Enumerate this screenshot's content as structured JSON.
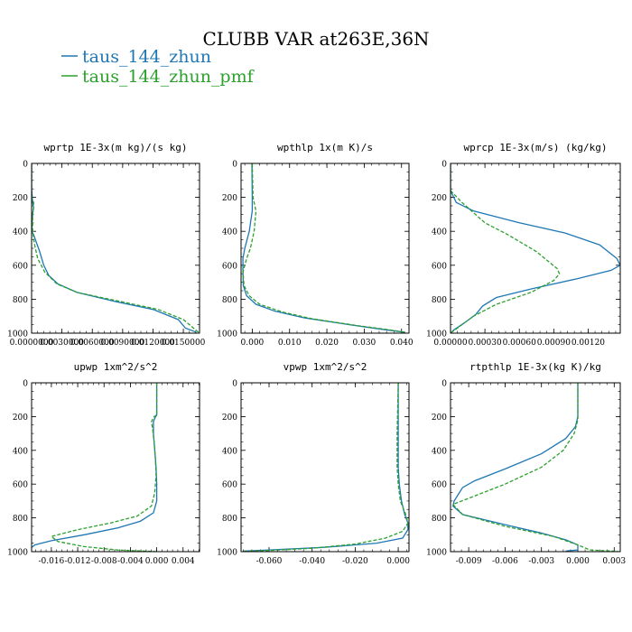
{
  "figure_title": "CLUBB VAR at263E,36N",
  "legend": [
    {
      "label": "taus_144_zhun",
      "color": "#1f77b4",
      "dash": "solid"
    },
    {
      "label": "taus_144_zhun_pmf",
      "color": "#2ca02c",
      "dash": "dashed"
    }
  ],
  "chart_data": [
    {
      "type": "line",
      "title": "wprtp  1E-3x(m kg)/(s kg)",
      "xlabel": "",
      "ylabel": "",
      "xlim": [
        0,
        0.0166
      ],
      "ylim": [
        1000,
        0
      ],
      "y_reversed": true,
      "xticks": [
        0,
        0.003,
        0.006,
        0.009,
        0.012,
        0.015
      ],
      "xtick_labels": [
        "0.0000000",
        "0.0030000",
        "0.0060000",
        "0.0090000",
        "0.0120000",
        "0.0150000"
      ],
      "yticks": [
        0,
        200,
        400,
        600,
        800,
        1000
      ],
      "ytick_labels": [
        "0",
        "200",
        "400",
        "600",
        "800",
        "1000"
      ],
      "series": [
        {
          "name": "taus_144_zhun",
          "color": "#1f77b4",
          "dash": "solid",
          "points": [
            [
              0,
              0
            ],
            [
              0,
              150
            ],
            [
              0.0001,
              230
            ],
            [
              0.0002,
              260
            ],
            [
              0.0001,
              300
            ],
            [
              0,
              400
            ],
            [
              0.0002,
              420
            ],
            [
              0.0005,
              470
            ],
            [
              0.0008,
              520
            ],
            [
              0.0012,
              600
            ],
            [
              0.0017,
              660
            ],
            [
              0.0026,
              710
            ],
            [
              0.0045,
              760
            ],
            [
              0.008,
              810
            ],
            [
              0.012,
              860
            ],
            [
              0.0145,
              920
            ],
            [
              0.0152,
              970
            ],
            [
              0.0163,
              995
            ]
          ]
        },
        {
          "name": "taus_144_zhun_pmf",
          "color": "#2ca02c",
          "dash": "dashed",
          "points": [
            [
              0,
              0
            ],
            [
              0,
              200
            ],
            [
              0.0002,
              230
            ],
            [
              0.0002,
              260
            ],
            [
              0.0001,
              300
            ],
            [
              0.0001,
              400
            ],
            [
              0.0003,
              480
            ],
            [
              0.0006,
              560
            ],
            [
              0.0013,
              640
            ],
            [
              0.0025,
              710
            ],
            [
              0.0045,
              760
            ],
            [
              0.0085,
              810
            ],
            [
              0.0125,
              860
            ],
            [
              0.015,
              920
            ],
            [
              0.0162,
              980
            ],
            [
              0.0165,
              995
            ]
          ]
        }
      ]
    },
    {
      "type": "line",
      "title": "wpthlp  1x(m K)/s",
      "xlabel": "",
      "ylabel": "",
      "xlim": [
        -0.003,
        0.042
      ],
      "ylim": [
        1000,
        0
      ],
      "y_reversed": true,
      "xticks": [
        0,
        0.01,
        0.02,
        0.03,
        0.04
      ],
      "xtick_labels": [
        "0.000",
        "0.010",
        "0.020",
        "0.030",
        "0.040"
      ],
      "yticks": [
        0,
        200,
        400,
        600,
        800,
        1000
      ],
      "ytick_labels": [
        "0",
        "200",
        "400",
        "600",
        "800",
        "1000"
      ],
      "series": [
        {
          "name": "taus_144_zhun",
          "color": "#1f77b4",
          "dash": "solid",
          "points": [
            [
              -0.0001,
              0
            ],
            [
              0,
              200
            ],
            [
              0,
              280
            ],
            [
              -0.0008,
              400
            ],
            [
              -0.002,
              500
            ],
            [
              -0.0025,
              560
            ],
            [
              -0.0025,
              640
            ],
            [
              -0.0024,
              720
            ],
            [
              -0.0015,
              780
            ],
            [
              0.001,
              830
            ],
            [
              0.006,
              870
            ],
            [
              0.014,
              910
            ],
            [
              0.026,
              950
            ],
            [
              0.034,
              975
            ],
            [
              0.041,
              995
            ]
          ]
        },
        {
          "name": "taus_144_zhun_pmf",
          "color": "#2ca02c",
          "dash": "dashed",
          "points": [
            [
              0,
              0
            ],
            [
              0.0002,
              200
            ],
            [
              0.001,
              280
            ],
            [
              0.0005,
              400
            ],
            [
              -0.0005,
              500
            ],
            [
              -0.0015,
              560
            ],
            [
              -0.0025,
              640
            ],
            [
              -0.0022,
              720
            ],
            [
              -0.0008,
              780
            ],
            [
              0.002,
              830
            ],
            [
              0.008,
              875
            ],
            [
              0.016,
              915
            ],
            [
              0.028,
              955
            ],
            [
              0.036,
              978
            ],
            [
              0.041,
              995
            ]
          ]
        }
      ]
    },
    {
      "type": "line",
      "title": "wprcp  1E-3x(m/s) (kg/kg)",
      "xlabel": "",
      "ylabel": "",
      "xlim": [
        0,
        0.00148
      ],
      "ylim": [
        1000,
        0
      ],
      "y_reversed": true,
      "xticks": [
        0,
        0.0003,
        0.0006,
        0.0009,
        0.0012
      ],
      "xtick_labels": [
        "0.00000",
        "0.00030",
        "0.00060",
        "0.00090",
        "0.00120"
      ],
      "yticks": [
        0,
        200,
        400,
        600,
        800,
        1000
      ],
      "ytick_labels": [
        "0",
        "200",
        "400",
        "600",
        "800",
        "1000"
      ],
      "series": [
        {
          "name": "taus_144_zhun",
          "color": "#1f77b4",
          "dash": "solid",
          "points": [
            [
              0,
              0
            ],
            [
              0,
              160
            ],
            [
              5e-05,
              230
            ],
            [
              0.0002,
              280
            ],
            [
              0.0006,
              350
            ],
            [
              0.001,
              410
            ],
            [
              0.0013,
              480
            ],
            [
              0.00145,
              560
            ],
            [
              0.00148,
              600
            ],
            [
              0.0014,
              630
            ],
            [
              0.0011,
              680
            ],
            [
              0.0007,
              740
            ],
            [
              0.0004,
              790
            ],
            [
              0.00028,
              840
            ],
            [
              0.00022,
              890
            ],
            [
              0.00012,
              940
            ],
            [
              3e-05,
              980
            ],
            [
              0,
              1000
            ]
          ]
        },
        {
          "name": "taus_144_zhun_pmf",
          "color": "#2ca02c",
          "dash": "dashed",
          "points": [
            [
              0,
              0
            ],
            [
              0,
              160
            ],
            [
              0.0001,
              230
            ],
            [
              0.0002,
              290
            ],
            [
              0.0003,
              350
            ],
            [
              0.0005,
              420
            ],
            [
              0.00075,
              520
            ],
            [
              0.00093,
              620
            ],
            [
              0.00095,
              650
            ],
            [
              0.0009,
              690
            ],
            [
              0.0007,
              760
            ],
            [
              0.0004,
              830
            ],
            [
              0.0002,
              900
            ],
            [
              0.0001,
              950
            ],
            [
              2e-05,
              990
            ],
            [
              0,
              1000
            ]
          ]
        }
      ]
    },
    {
      "type": "line",
      "title": "upwp  1xm^2/s^2",
      "xlabel": "",
      "ylabel": "",
      "xlim": [
        -0.019,
        0.0065
      ],
      "ylim": [
        1000,
        0
      ],
      "y_reversed": true,
      "xticks": [
        -0.016,
        -0.012,
        -0.008,
        -0.004,
        0,
        0.004
      ],
      "xtick_labels": [
        "-0.016",
        "-0.012",
        "-0.008",
        "-0.004",
        "0.000",
        "0.004"
      ],
      "yticks": [
        0,
        200,
        400,
        600,
        800,
        1000
      ],
      "ytick_labels": [
        "0",
        "200",
        "400",
        "600",
        "800",
        "1000"
      ],
      "series": [
        {
          "name": "taus_144_zhun",
          "color": "#1f77b4",
          "dash": "solid",
          "points": [
            [
              0,
              0
            ],
            [
              0,
              190
            ],
            [
              -0.0003,
              210
            ],
            [
              -0.0005,
              230
            ],
            [
              -0.0005,
              300
            ],
            [
              -0.0003,
              400
            ],
            [
              -0.0001,
              500
            ],
            [
              0,
              600
            ],
            [
              0,
              700
            ],
            [
              -0.0005,
              770
            ],
            [
              -0.0025,
              820
            ],
            [
              -0.006,
              860
            ],
            [
              -0.011,
              900
            ],
            [
              -0.016,
              935
            ],
            [
              -0.0185,
              960
            ],
            [
              -0.019,
              975
            ]
          ]
        },
        {
          "name": "taus_144_zhun_pmf",
          "color": "#2ca02c",
          "dash": "dashed",
          "points": [
            [
              0,
              0
            ],
            [
              0,
              190
            ],
            [
              -0.0004,
              200
            ],
            [
              -0.0008,
              230
            ],
            [
              -0.0006,
              280
            ],
            [
              -0.0004,
              350
            ],
            [
              -0.0002,
              450
            ],
            [
              -0.0001,
              550
            ],
            [
              -0.0003,
              650
            ],
            [
              -0.0008,
              730
            ],
            [
              -0.003,
              790
            ],
            [
              -0.007,
              830
            ],
            [
              -0.012,
              870
            ],
            [
              -0.016,
              910
            ],
            [
              -0.015,
              940
            ],
            [
              -0.011,
              970
            ],
            [
              -0.006,
              990
            ],
            [
              0,
              1000
            ]
          ]
        }
      ]
    },
    {
      "type": "line",
      "title": "vpwp  1xm^2/s^2",
      "xlabel": "",
      "ylabel": "",
      "xlim": [
        -0.073,
        0.005
      ],
      "ylim": [
        1000,
        0
      ],
      "y_reversed": true,
      "xticks": [
        -0.06,
        -0.04,
        -0.02,
        0
      ],
      "xtick_labels": [
        "-0.060",
        "-0.040",
        "-0.020",
        "0.000"
      ],
      "yticks": [
        0,
        200,
        400,
        600,
        800,
        1000
      ],
      "ytick_labels": [
        "0",
        "200",
        "400",
        "600",
        "800",
        "1000"
      ],
      "series": [
        {
          "name": "taus_144_zhun",
          "color": "#1f77b4",
          "dash": "solid",
          "points": [
            [
              0,
              0
            ],
            [
              0,
              300
            ],
            [
              0,
              500
            ],
            [
              0.0005,
              600
            ],
            [
              0.0015,
              700
            ],
            [
              0.003,
              780
            ],
            [
              0.0045,
              830
            ],
            [
              0.0045,
              870
            ],
            [
              0.002,
              920
            ],
            [
              -0.01,
              950
            ],
            [
              -0.035,
              975
            ],
            [
              -0.06,
              990
            ],
            [
              -0.072,
              997
            ]
          ]
        },
        {
          "name": "taus_144_zhun_pmf",
          "color": "#2ca02c",
          "dash": "dashed",
          "points": [
            [
              0,
              0
            ],
            [
              -0.0005,
              300
            ],
            [
              -0.0005,
              500
            ],
            [
              0,
              600
            ],
            [
              0.001,
              700
            ],
            [
              0.0035,
              780
            ],
            [
              0.0045,
              830
            ],
            [
              0.002,
              880
            ],
            [
              -0.006,
              920
            ],
            [
              -0.02,
              955
            ],
            [
              -0.04,
              980
            ],
            [
              -0.06,
              993
            ],
            [
              -0.072,
              998
            ]
          ]
        }
      ]
    },
    {
      "type": "line",
      "title": "rtpthlp  1E-3x(kg K)/kg",
      "xlabel": "",
      "ylabel": "",
      "xlim": [
        -0.0105,
        0.0035
      ],
      "ylim": [
        1000,
        0
      ],
      "y_reversed": true,
      "xticks": [
        -0.009,
        -0.006,
        -0.003,
        0,
        0.003
      ],
      "xtick_labels": [
        "-0.009",
        "-0.006",
        "-0.003",
        "0.000",
        "0.003"
      ],
      "yticks": [
        0,
        200,
        400,
        600,
        800,
        1000
      ],
      "ytick_labels": [
        "0",
        "200",
        "400",
        "600",
        "800",
        "1000"
      ],
      "series": [
        {
          "name": "taus_144_zhun",
          "color": "#1f77b4",
          "dash": "solid",
          "points": [
            [
              0,
              0
            ],
            [
              0,
              200
            ],
            [
              -0.0002,
              260
            ],
            [
              -0.001,
              330
            ],
            [
              -0.003,
              420
            ],
            [
              -0.006,
              510
            ],
            [
              -0.0085,
              580
            ],
            [
              -0.0095,
              620
            ],
            [
              -0.0102,
              700
            ],
            [
              -0.0103,
              730
            ],
            [
              -0.0095,
              780
            ],
            [
              -0.006,
              840
            ],
            [
              -0.003,
              890
            ],
            [
              -0.001,
              930
            ],
            [
              0,
              960
            ],
            [
              0,
              990
            ],
            [
              -0.0008,
              995
            ],
            [
              -0.001,
              997
            ]
          ]
        },
        {
          "name": "taus_144_zhun_pmf",
          "color": "#2ca02c",
          "dash": "dashed",
          "points": [
            [
              0,
              0
            ],
            [
              0,
              220
            ],
            [
              -0.0003,
              300
            ],
            [
              -0.0012,
              400
            ],
            [
              -0.003,
              500
            ],
            [
              -0.006,
              600
            ],
            [
              -0.0085,
              670
            ],
            [
              -0.0103,
              720
            ],
            [
              -0.0095,
              780
            ],
            [
              -0.006,
              850
            ],
            [
              -0.002,
              910
            ],
            [
              0,
              960
            ],
            [
              0.001,
              990
            ],
            [
              0.0033,
              998
            ]
          ]
        }
      ]
    }
  ]
}
